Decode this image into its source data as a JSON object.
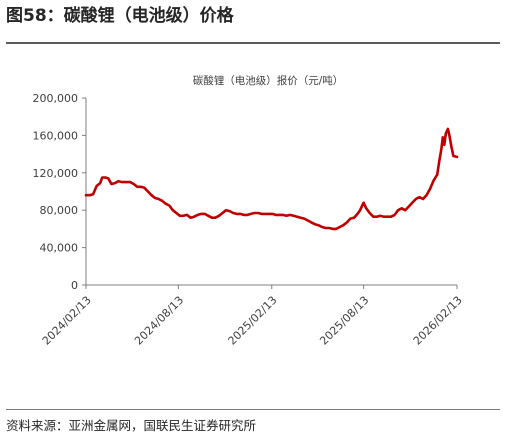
{
  "figure_title": "图58：碳酸锂（电池级）价格",
  "source": "资料来源：亚洲金属网，国联民生证券研究所",
  "colors": {
    "line": "#c00000",
    "axis": "#7f7f7f",
    "text": "#404040"
  },
  "chart_data": {
    "type": "line",
    "title": "碳酸锂（电池级）报价（元/吨）",
    "xlabel": "",
    "ylabel": "",
    "xlim": [
      "2024-02-13",
      "2026-02-13"
    ],
    "ylim": [
      0,
      200000
    ],
    "y_ticks": [
      0,
      40000,
      80000,
      120000,
      160000,
      200000
    ],
    "y_tick_labels": [
      "0",
      "40,000",
      "80,000",
      "120,000",
      "160,000",
      "200,000"
    ],
    "x_ticks": [
      "2024-02-13",
      "2024-08-13",
      "2025-02-13",
      "2025-08-13",
      "2026-02-13"
    ],
    "x_tick_labels": [
      "2024/02/13",
      "2024/08/13",
      "2025/02/13",
      "2025/08/13",
      "2026/02/13"
    ],
    "grid": false,
    "legend": "none",
    "series": [
      {
        "values": [
          [
            "2024-02-13",
            96000
          ],
          [
            "2024-02-20",
            96000
          ],
          [
            "2024-02-27",
            97000
          ],
          [
            "2024-03-05",
            106000
          ],
          [
            "2024-03-12",
            109000
          ],
          [
            "2024-03-16",
            115000
          ],
          [
            "2024-03-22",
            115000
          ],
          [
            "2024-03-28",
            114000
          ],
          [
            "2024-04-03",
            108000
          ],
          [
            "2024-04-10",
            109000
          ],
          [
            "2024-04-17",
            111000
          ],
          [
            "2024-04-24",
            110000
          ],
          [
            "2024-05-03",
            110000
          ],
          [
            "2024-05-10",
            110000
          ],
          [
            "2024-05-17",
            108000
          ],
          [
            "2024-05-24",
            105000
          ],
          [
            "2024-05-31",
            105000
          ],
          [
            "2024-06-07",
            104000
          ],
          [
            "2024-06-14",
            100000
          ],
          [
            "2024-06-21",
            96000
          ],
          [
            "2024-06-28",
            93000
          ],
          [
            "2024-07-05",
            92000
          ],
          [
            "2024-07-12",
            90000
          ],
          [
            "2024-07-19",
            87000
          ],
          [
            "2024-07-26",
            85000
          ],
          [
            "2024-08-02",
            80000
          ],
          [
            "2024-08-09",
            77000
          ],
          [
            "2024-08-16",
            74000
          ],
          [
            "2024-08-23",
            74000
          ],
          [
            "2024-08-30",
            75000
          ],
          [
            "2024-09-06",
            72000
          ],
          [
            "2024-09-13",
            73000
          ],
          [
            "2024-09-20",
            75000
          ],
          [
            "2024-09-27",
            76000
          ],
          [
            "2024-10-04",
            76000
          ],
          [
            "2024-10-11",
            74000
          ],
          [
            "2024-10-18",
            72000
          ],
          [
            "2024-10-25",
            72000
          ],
          [
            "2024-11-01",
            74000
          ],
          [
            "2024-11-08",
            77000
          ],
          [
            "2024-11-15",
            80000
          ],
          [
            "2024-11-22",
            79000
          ],
          [
            "2024-11-29",
            77000
          ],
          [
            "2024-12-06",
            76000
          ],
          [
            "2024-12-13",
            76000
          ],
          [
            "2024-12-20",
            75000
          ],
          [
            "2024-12-27",
            75000
          ],
          [
            "2025-01-03",
            76000
          ],
          [
            "2025-01-10",
            77000
          ],
          [
            "2025-01-17",
            77000
          ],
          [
            "2025-01-24",
            76000
          ],
          [
            "2025-02-07",
            76000
          ],
          [
            "2025-02-14",
            76000
          ],
          [
            "2025-02-21",
            75000
          ],
          [
            "2025-02-28",
            75000
          ],
          [
            "2025-03-07",
            75000
          ],
          [
            "2025-03-14",
            74000
          ],
          [
            "2025-03-21",
            75000
          ],
          [
            "2025-03-28",
            74000
          ],
          [
            "2025-04-04",
            73000
          ],
          [
            "2025-04-11",
            72000
          ],
          [
            "2025-04-18",
            71000
          ],
          [
            "2025-04-25",
            69000
          ],
          [
            "2025-05-02",
            67000
          ],
          [
            "2025-05-09",
            65000
          ],
          [
            "2025-05-16",
            64000
          ],
          [
            "2025-05-23",
            62000
          ],
          [
            "2025-05-30",
            61000
          ],
          [
            "2025-06-06",
            61000
          ],
          [
            "2025-06-13",
            60000
          ],
          [
            "2025-06-20",
            60000
          ],
          [
            "2025-06-27",
            62000
          ],
          [
            "2025-07-04",
            64000
          ],
          [
            "2025-07-11",
            67000
          ],
          [
            "2025-07-18",
            71000
          ],
          [
            "2025-07-25",
            72000
          ],
          [
            "2025-08-01",
            76000
          ],
          [
            "2025-08-06",
            80000
          ],
          [
            "2025-08-11",
            86000
          ],
          [
            "2025-08-13",
            88000
          ],
          [
            "2025-08-18",
            82000
          ],
          [
            "2025-08-25",
            77000
          ],
          [
            "2025-09-01",
            73000
          ],
          [
            "2025-09-08",
            73000
          ],
          [
            "2025-09-15",
            74000
          ],
          [
            "2025-09-22",
            73000
          ],
          [
            "2025-09-29",
            73000
          ],
          [
            "2025-10-06",
            73000
          ],
          [
            "2025-10-13",
            75000
          ],
          [
            "2025-10-20",
            80000
          ],
          [
            "2025-10-27",
            82000
          ],
          [
            "2025-11-03",
            80000
          ],
          [
            "2025-11-10",
            84000
          ],
          [
            "2025-11-17",
            88000
          ],
          [
            "2025-11-24",
            92000
          ],
          [
            "2025-12-01",
            94000
          ],
          [
            "2025-12-08",
            92000
          ],
          [
            "2025-12-15",
            96000
          ],
          [
            "2025-12-22",
            103000
          ],
          [
            "2025-12-29",
            112000
          ],
          [
            "2026-01-05",
            118000
          ],
          [
            "2026-01-09",
            132000
          ],
          [
            "2026-01-13",
            145000
          ],
          [
            "2026-01-16",
            158000
          ],
          [
            "2026-01-19",
            150000
          ],
          [
            "2026-01-22",
            162000
          ],
          [
            "2026-01-26",
            167000
          ],
          [
            "2026-01-29",
            160000
          ],
          [
            "2026-02-02",
            148000
          ],
          [
            "2026-02-06",
            138000
          ],
          [
            "2026-02-13",
            137000
          ]
        ]
      }
    ]
  }
}
